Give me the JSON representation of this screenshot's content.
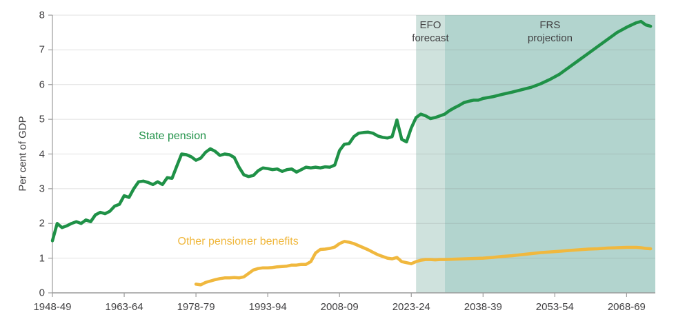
{
  "accent_colors": {
    "state_pension_green": "#1f9147",
    "other_benefits_yellow": "#f0b83e",
    "efo_band": "#cfe2dd",
    "frs_band": "#b2d4ce",
    "axis_text": "#414042",
    "axis_line": "#9b9b9b",
    "gridline": "#787878"
  },
  "chart_data": {
    "type": "line",
    "title": "",
    "xlabel": "",
    "ylabel": "Per cent of GDP",
    "ylim": [
      0,
      8
    ],
    "xlim_years": [
      1948,
      2074
    ],
    "grid": "horizontal",
    "legend_position": "inline-labels",
    "y_ticks": [
      0,
      1,
      2,
      3,
      4,
      5,
      6,
      7,
      8
    ],
    "x_ticks": [
      {
        "year": 1948,
        "label": "1948-49"
      },
      {
        "year": 1963,
        "label": "1963-64"
      },
      {
        "year": 1978,
        "label": "1978-79"
      },
      {
        "year": 1993,
        "label": "1993-94"
      },
      {
        "year": 2008,
        "label": "2008-09"
      },
      {
        "year": 2023,
        "label": "2023-24"
      },
      {
        "year": 2038,
        "label": "2038-39"
      },
      {
        "year": 2053,
        "label": "2053-54"
      },
      {
        "year": 2068,
        "label": "2068-69"
      }
    ],
    "bands": [
      {
        "name": "efo-forecast-band",
        "label_lines": [
          "EFO",
          "forecast"
        ],
        "start_year": 2024,
        "end_year": 2030,
        "color": "#cfe2dd"
      },
      {
        "name": "frs-projection-band",
        "label_lines": [
          "FRS",
          "projection"
        ],
        "start_year": 2030,
        "end_year": 2074,
        "color": "#b2d4ce"
      }
    ],
    "band_label_top_value": 7.9,
    "series": [
      {
        "name": "State pension",
        "color": "#1f9147",
        "label": {
          "text": "State pension",
          "x_year": 1973.1,
          "y_value": 4.5
        },
        "points": [
          [
            1948,
            1.5
          ],
          [
            1949,
            2.0
          ],
          [
            1950,
            1.88
          ],
          [
            1951,
            1.93
          ],
          [
            1952,
            2.0
          ],
          [
            1953,
            2.05
          ],
          [
            1954,
            2.0
          ],
          [
            1955,
            2.1
          ],
          [
            1956,
            2.05
          ],
          [
            1957,
            2.25
          ],
          [
            1958,
            2.32
          ],
          [
            1959,
            2.28
          ],
          [
            1960,
            2.35
          ],
          [
            1961,
            2.5
          ],
          [
            1962,
            2.55
          ],
          [
            1963,
            2.8
          ],
          [
            1964,
            2.75
          ],
          [
            1965,
            3.0
          ],
          [
            1966,
            3.2
          ],
          [
            1967,
            3.22
          ],
          [
            1968,
            3.18
          ],
          [
            1969,
            3.12
          ],
          [
            1970,
            3.2
          ],
          [
            1971,
            3.12
          ],
          [
            1972,
            3.32
          ],
          [
            1973,
            3.3
          ],
          [
            1974,
            3.65
          ],
          [
            1975,
            4.0
          ],
          [
            1976,
            3.98
          ],
          [
            1977,
            3.92
          ],
          [
            1978,
            3.82
          ],
          [
            1979,
            3.88
          ],
          [
            1980,
            4.05
          ],
          [
            1981,
            4.15
          ],
          [
            1982,
            4.08
          ],
          [
            1983,
            3.96
          ],
          [
            1984,
            4.0
          ],
          [
            1985,
            3.98
          ],
          [
            1986,
            3.9
          ],
          [
            1987,
            3.62
          ],
          [
            1988,
            3.4
          ],
          [
            1989,
            3.35
          ],
          [
            1990,
            3.38
          ],
          [
            1991,
            3.52
          ],
          [
            1992,
            3.6
          ],
          [
            1993,
            3.58
          ],
          [
            1994,
            3.55
          ],
          [
            1995,
            3.57
          ],
          [
            1996,
            3.5
          ],
          [
            1997,
            3.55
          ],
          [
            1998,
            3.57
          ],
          [
            1999,
            3.48
          ],
          [
            2000,
            3.55
          ],
          [
            2001,
            3.62
          ],
          [
            2002,
            3.6
          ],
          [
            2003,
            3.62
          ],
          [
            2004,
            3.6
          ],
          [
            2005,
            3.63
          ],
          [
            2006,
            3.62
          ],
          [
            2007,
            3.68
          ],
          [
            2008,
            4.1
          ],
          [
            2009,
            4.28
          ],
          [
            2010,
            4.3
          ],
          [
            2011,
            4.5
          ],
          [
            2012,
            4.6
          ],
          [
            2013,
            4.62
          ],
          [
            2014,
            4.63
          ],
          [
            2015,
            4.6
          ],
          [
            2016,
            4.52
          ],
          [
            2017,
            4.48
          ],
          [
            2018,
            4.46
          ],
          [
            2019,
            4.5
          ],
          [
            2020,
            4.98
          ],
          [
            2021,
            4.42
          ],
          [
            2022,
            4.35
          ],
          [
            2023,
            4.75
          ],
          [
            2024,
            5.05
          ],
          [
            2025,
            5.15
          ],
          [
            2026,
            5.1
          ],
          [
            2027,
            5.02
          ],
          [
            2028,
            5.05
          ],
          [
            2029,
            5.1
          ],
          [
            2030,
            5.15
          ],
          [
            2031,
            5.25
          ],
          [
            2032,
            5.33
          ],
          [
            2033,
            5.4
          ],
          [
            2034,
            5.48
          ],
          [
            2035,
            5.52
          ],
          [
            2036,
            5.55
          ],
          [
            2037,
            5.55
          ],
          [
            2038,
            5.6
          ],
          [
            2040,
            5.65
          ],
          [
            2042,
            5.72
          ],
          [
            2044,
            5.78
          ],
          [
            2046,
            5.85
          ],
          [
            2048,
            5.92
          ],
          [
            2050,
            6.02
          ],
          [
            2052,
            6.15
          ],
          [
            2054,
            6.3
          ],
          [
            2056,
            6.5
          ],
          [
            2058,
            6.7
          ],
          [
            2060,
            6.9
          ],
          [
            2062,
            7.1
          ],
          [
            2064,
            7.3
          ],
          [
            2066,
            7.5
          ],
          [
            2068,
            7.65
          ],
          [
            2070,
            7.78
          ],
          [
            2071,
            7.82
          ],
          [
            2072,
            7.72
          ],
          [
            2073,
            7.68
          ]
        ]
      },
      {
        "name": "Other pensioner benefits",
        "color": "#f0b83e",
        "label": {
          "text": "Other pensioner benefits",
          "x_year": 1986.8,
          "y_value": 1.47
        },
        "points": [
          [
            1978,
            0.25
          ],
          [
            1979,
            0.23
          ],
          [
            1980,
            0.3
          ],
          [
            1981,
            0.34
          ],
          [
            1982,
            0.38
          ],
          [
            1983,
            0.41
          ],
          [
            1984,
            0.43
          ],
          [
            1985,
            0.43
          ],
          [
            1986,
            0.44
          ],
          [
            1987,
            0.43
          ],
          [
            1988,
            0.46
          ],
          [
            1989,
            0.56
          ],
          [
            1990,
            0.66
          ],
          [
            1991,
            0.7
          ],
          [
            1992,
            0.72
          ],
          [
            1993,
            0.72
          ],
          [
            1994,
            0.73
          ],
          [
            1995,
            0.75
          ],
          [
            1996,
            0.76
          ],
          [
            1997,
            0.77
          ],
          [
            1998,
            0.8
          ],
          [
            1999,
            0.8
          ],
          [
            2000,
            0.82
          ],
          [
            2001,
            0.82
          ],
          [
            2002,
            0.9
          ],
          [
            2003,
            1.15
          ],
          [
            2004,
            1.25
          ],
          [
            2005,
            1.26
          ],
          [
            2006,
            1.28
          ],
          [
            2007,
            1.32
          ],
          [
            2008,
            1.42
          ],
          [
            2009,
            1.48
          ],
          [
            2010,
            1.46
          ],
          [
            2011,
            1.42
          ],
          [
            2012,
            1.36
          ],
          [
            2013,
            1.3
          ],
          [
            2014,
            1.24
          ],
          [
            2015,
            1.17
          ],
          [
            2016,
            1.1
          ],
          [
            2017,
            1.05
          ],
          [
            2018,
            1.0
          ],
          [
            2019,
            0.98
          ],
          [
            2020,
            1.02
          ],
          [
            2021,
            0.9
          ],
          [
            2022,
            0.87
          ],
          [
            2023,
            0.84
          ],
          [
            2024,
            0.9
          ],
          [
            2025,
            0.94
          ],
          [
            2026,
            0.96
          ],
          [
            2027,
            0.96
          ],
          [
            2028,
            0.95
          ],
          [
            2029,
            0.96
          ],
          [
            2030,
            0.96
          ],
          [
            2032,
            0.97
          ],
          [
            2034,
            0.98
          ],
          [
            2036,
            0.99
          ],
          [
            2038,
            1.0
          ],
          [
            2040,
            1.02
          ],
          [
            2042,
            1.05
          ],
          [
            2044,
            1.07
          ],
          [
            2046,
            1.1
          ],
          [
            2048,
            1.13
          ],
          [
            2050,
            1.16
          ],
          [
            2052,
            1.18
          ],
          [
            2054,
            1.2
          ],
          [
            2056,
            1.22
          ],
          [
            2058,
            1.24
          ],
          [
            2060,
            1.26
          ],
          [
            2062,
            1.27
          ],
          [
            2064,
            1.29
          ],
          [
            2066,
            1.3
          ],
          [
            2068,
            1.31
          ],
          [
            2070,
            1.31
          ],
          [
            2071,
            1.3
          ],
          [
            2072,
            1.28
          ],
          [
            2073,
            1.27
          ]
        ]
      }
    ]
  }
}
